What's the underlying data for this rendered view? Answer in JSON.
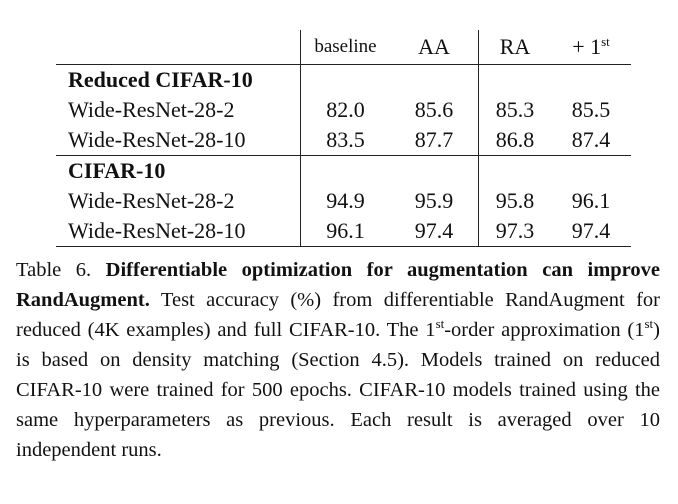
{
  "table": {
    "columns": [
      "baseline",
      "AA",
      "RA",
      "+ 1",
      "st"
    ],
    "sections": [
      {
        "title": "Reduced CIFAR-10",
        "rows": [
          {
            "model": "Wide-ResNet-28-2",
            "baseline": "82.0",
            "aa": "85.6",
            "ra": "85.3",
            "first": "85.5"
          },
          {
            "model": "Wide-ResNet-28-10",
            "baseline": "83.5",
            "aa": "87.7",
            "ra": "86.8",
            "first": "87.4"
          }
        ]
      },
      {
        "title": "CIFAR-10",
        "rows": [
          {
            "model": "Wide-ResNet-28-2",
            "baseline": "94.9",
            "aa": "95.9",
            "ra": "95.8",
            "first": "96.1"
          },
          {
            "model": "Wide-ResNet-28-10",
            "baseline": "96.1",
            "aa": "97.4",
            "ra": "97.3",
            "first": "97.4"
          }
        ]
      }
    ]
  },
  "caption": {
    "label": "Table 6.",
    "title": "Differentiable optimization for augmentation can improve RandAugment.",
    "text_1": "Test accuracy (%) from differentiable RandAugment for reduced (4K examples) and full CIFAR-10. The 1",
    "sup_1": "st",
    "text_2": "-order approximation (1",
    "sup_2": "st",
    "text_3": ") is based on density matching (Section 4.5). Models trained on reduced CIFAR-10 were trained for 500 epochs. CIFAR-10 models trained using the same hyperparameters as previous. Each result is averaged over 10 independent runs."
  }
}
